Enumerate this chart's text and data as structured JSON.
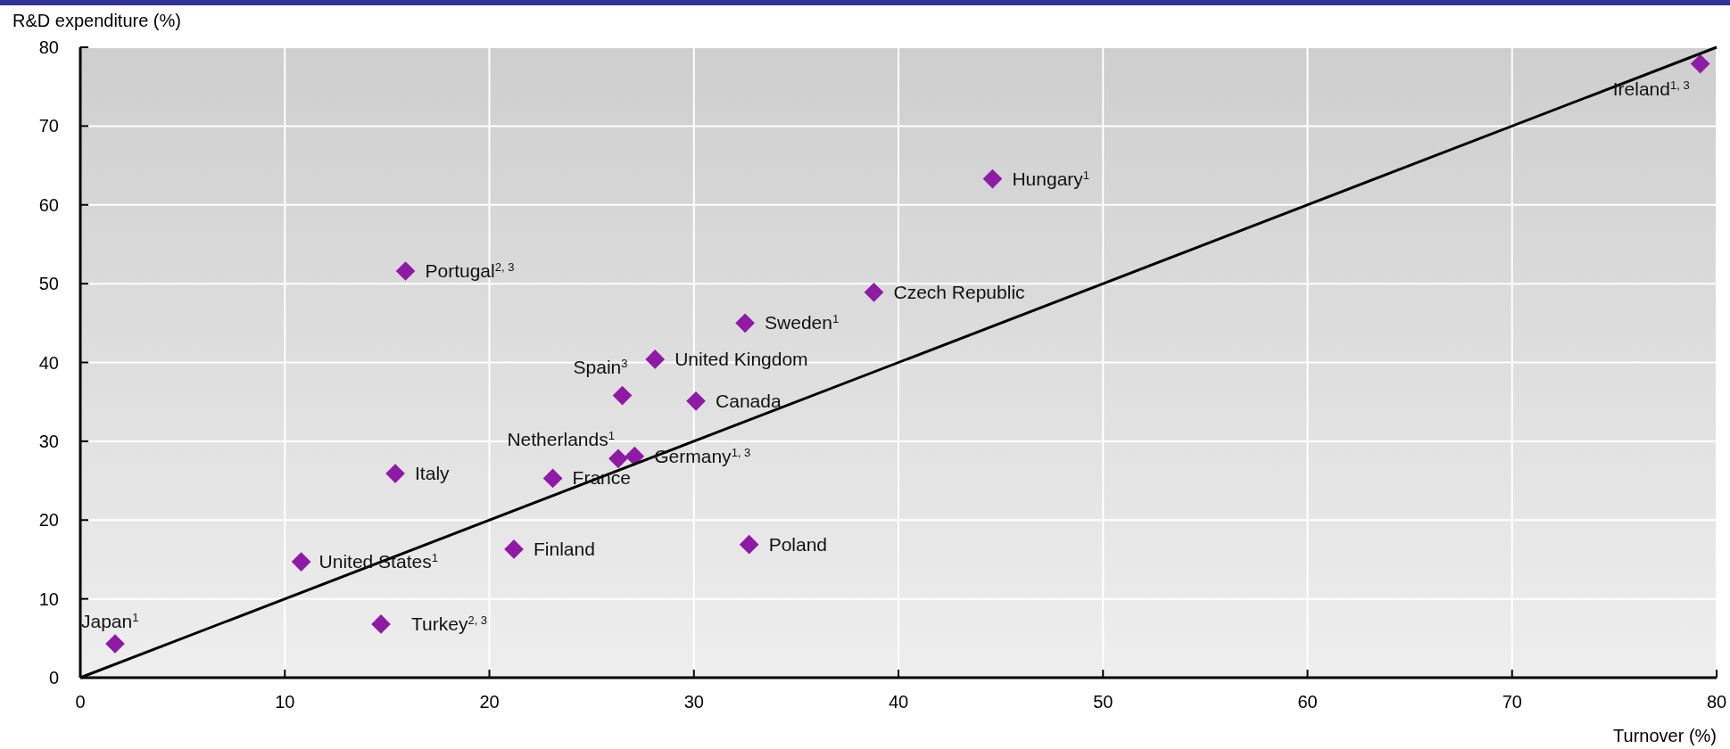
{
  "chart_data": {
    "type": "scatter",
    "xlabel": "Turnover (%)",
    "ylabel": "R&D expenditure (%)",
    "xlim": [
      0,
      80
    ],
    "ylim": [
      0,
      80
    ],
    "xticks": [
      0,
      10,
      20,
      30,
      40,
      50,
      60,
      70,
      80
    ],
    "yticks": [
      0,
      10,
      20,
      30,
      40,
      50,
      60,
      70,
      80
    ],
    "grid": true,
    "series": [
      {
        "marker": "diamond",
        "color": "#8e1aa6",
        "x": [
          1.7,
          10.8,
          14.7,
          15.4,
          15.9,
          21.2,
          23.1,
          26.3,
          26.5,
          27.1,
          28.1,
          30.1,
          32.5,
          32.7,
          38.8,
          44.6,
          79.2
        ],
        "values": [
          4.3,
          14.7,
          6.8,
          25.9,
          51.6,
          16.3,
          25.3,
          27.8,
          35.8,
          28.1,
          40.4,
          35.1,
          45.0,
          16.9,
          48.9,
          63.3,
          77.9
        ]
      },
      {
        "type": "line",
        "marker": "none",
        "color": "#000000",
        "x": [
          0,
          80
        ],
        "values": [
          0,
          80
        ]
      }
    ],
    "annotations": [
      {
        "text": "Japan$^{1}$",
        "x": 1.7,
        "y": 4.3
      },
      {
        "text": "United States$^{1}$",
        "x": 10.8,
        "y": 14.7
      },
      {
        "text": "Turkey$^{2, 3}$",
        "x": 14.7,
        "y": 6.8
      },
      {
        "text": "Italy",
        "x": 15.4,
        "y": 25.9
      },
      {
        "text": "Portugal$^{2, 3}$",
        "x": 15.9,
        "y": 51.6
      },
      {
        "text": "Finland",
        "x": 21.2,
        "y": 16.3
      },
      {
        "text": "France",
        "x": 23.1,
        "y": 25.3
      },
      {
        "text": "Netherlands$^{1}$",
        "x": 26.3,
        "y": 27.8
      },
      {
        "text": "Spain$^{3}$",
        "x": 26.5,
        "y": 35.8
      },
      {
        "text": "Germany$^{1, 3}$",
        "x": 27.1,
        "y": 28.1
      },
      {
        "text": "United Kingdom",
        "x": 28.1,
        "y": 40.4
      },
      {
        "text": "Canada",
        "x": 30.1,
        "y": 35.1
      },
      {
        "text": "Sweden$^{1}$",
        "x": 32.5,
        "y": 45.0
      },
      {
        "text": "Poland",
        "x": 32.7,
        "y": 16.9
      },
      {
        "text": "Czech Republic",
        "x": 38.8,
        "y": 48.9
      },
      {
        "text": "Hungary$^{1}$",
        "x": 44.6,
        "y": 63.3
      },
      {
        "text": "Ireland$^{1, 3}$",
        "x": 79.2,
        "y": 77.9
      }
    ]
  }
}
